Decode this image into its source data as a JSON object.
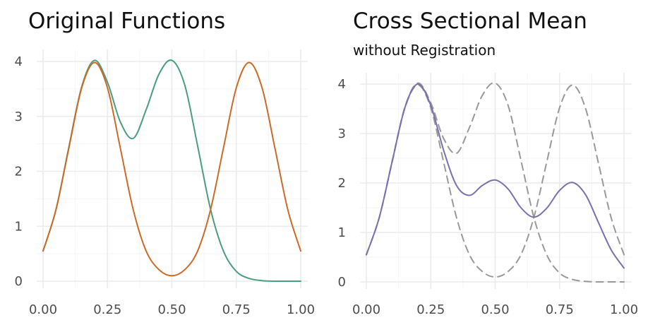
{
  "chart_data": [
    {
      "type": "line",
      "title": "Original Functions",
      "subtitle": "",
      "xlabel": "",
      "ylabel": "",
      "xlim": [
        0,
        1
      ],
      "ylim": [
        0,
        4
      ],
      "x_ticks": [
        "0.00",
        "0.25",
        "0.50",
        "0.75",
        "1.00"
      ],
      "y_ticks": [
        "0",
        "1",
        "2",
        "3",
        "4"
      ],
      "grid": true,
      "legend": "none",
      "x": [
        0.0,
        0.05,
        0.1,
        0.15,
        0.2,
        0.25,
        0.3,
        0.35,
        0.4,
        0.45,
        0.5,
        0.55,
        0.6,
        0.65,
        0.7,
        0.75,
        0.8,
        0.85,
        0.9,
        0.95,
        1.0
      ],
      "series": [
        {
          "color": "#4a9e80",
          "values": [
            0.55,
            1.3,
            2.44,
            3.54,
            4.02,
            3.62,
            2.9,
            2.6,
            3.12,
            3.77,
            4.02,
            3.57,
            2.46,
            1.31,
            0.55,
            0.18,
            0.05,
            0.01,
            0.0,
            0.0,
            0.0
          ]
        },
        {
          "color": "#cc6a26",
          "values": [
            0.55,
            1.3,
            2.42,
            3.52,
            3.98,
            3.52,
            2.42,
            1.3,
            0.55,
            0.21,
            0.1,
            0.21,
            0.55,
            1.3,
            2.42,
            3.52,
            3.98,
            3.52,
            2.42,
            1.3,
            0.55
          ]
        }
      ]
    },
    {
      "type": "line",
      "title": "Cross Sectional Mean",
      "subtitle": "without Registration",
      "xlabel": "",
      "ylabel": "",
      "xlim": [
        0,
        1
      ],
      "ylim": [
        0,
        4
      ],
      "x_ticks": [
        "0.00",
        "0.25",
        "0.50",
        "0.75",
        "1.00"
      ],
      "y_ticks": [
        "0",
        "1",
        "2",
        "3",
        "4"
      ],
      "grid": true,
      "legend": "none",
      "x": [
        0.0,
        0.05,
        0.1,
        0.15,
        0.2,
        0.25,
        0.3,
        0.35,
        0.4,
        0.45,
        0.5,
        0.55,
        0.6,
        0.65,
        0.7,
        0.75,
        0.8,
        0.85,
        0.9,
        0.95,
        1.0
      ],
      "series": [
        {
          "style": "solid",
          "color": "#7b70ad",
          "values": [
            0.55,
            1.3,
            2.43,
            3.53,
            4.0,
            3.57,
            2.66,
            1.95,
            1.75,
            1.95,
            2.06,
            1.88,
            1.5,
            1.31,
            1.49,
            1.85,
            2.01,
            1.77,
            1.21,
            0.65,
            0.28
          ]
        },
        {
          "style": "dashed",
          "color": "#999999",
          "values": [
            0.55,
            1.3,
            2.44,
            3.54,
            4.02,
            3.62,
            2.9,
            2.6,
            3.12,
            3.77,
            4.02,
            3.57,
            2.46,
            1.31,
            0.55,
            0.18,
            0.05,
            0.01,
            0.0,
            0.0,
            0.0
          ]
        },
        {
          "style": "dashed",
          "color": "#999999",
          "values": [
            0.55,
            1.3,
            2.42,
            3.52,
            3.98,
            3.52,
            2.42,
            1.3,
            0.55,
            0.21,
            0.1,
            0.21,
            0.55,
            1.3,
            2.42,
            3.52,
            3.98,
            3.52,
            2.42,
            1.3,
            0.55
          ]
        }
      ]
    }
  ]
}
